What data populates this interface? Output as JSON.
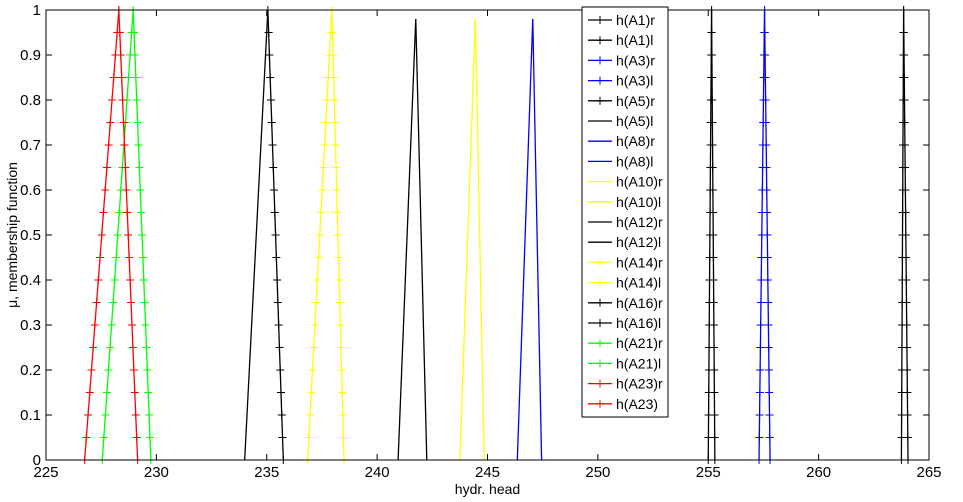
{
  "chart_data": {
    "type": "line",
    "title": "",
    "xlabel": "hydr. head",
    "ylabel": "μ, membership function",
    "xlim": [
      225,
      265
    ],
    "ylim": [
      0,
      1
    ],
    "xticks": [
      225,
      230,
      235,
      240,
      245,
      250,
      255,
      260,
      265
    ],
    "yticks": [
      0,
      0.1,
      0.2,
      0.3,
      0.4,
      0.5,
      0.6,
      0.7,
      0.8,
      0.9,
      1
    ],
    "grid": false,
    "legend_position": "top-right",
    "series": [
      {
        "name": "h(A1)r",
        "color": "#000000",
        "marker": "plus",
        "x": [
          255.15,
          255.3
        ],
        "y": [
          1,
          0
        ]
      },
      {
        "name": "h(A1)l",
        "color": "#000000",
        "marker": "plus",
        "x": [
          255.15,
          255.0
        ],
        "y": [
          1,
          0
        ]
      },
      {
        "name": "h(A3)r",
        "color": "#0000ff",
        "marker": "plus",
        "x": [
          257.55,
          257.8
        ],
        "y": [
          1,
          0
        ]
      },
      {
        "name": "h(A3)l",
        "color": "#0000ff",
        "marker": "plus",
        "x": [
          257.55,
          257.3
        ],
        "y": [
          1,
          0
        ]
      },
      {
        "name": "h(A5)r",
        "color": "#000000",
        "marker": "plus",
        "x": [
          235.05,
          235.75
        ],
        "y": [
          1,
          0
        ]
      },
      {
        "name": "h(A5)l",
        "color": "#000000",
        "marker": "none",
        "x": [
          235.05,
          234.0
        ],
        "y": [
          1,
          0
        ]
      },
      {
        "name": "h(A8)r",
        "color": "#0000ff",
        "marker": "none",
        "x": [
          247.05,
          247.45
        ],
        "y": [
          0.98,
          0
        ]
      },
      {
        "name": "h(A8)l",
        "color": "#0000ff",
        "marker": "none",
        "x": [
          247.05,
          246.35
        ],
        "y": [
          0.98,
          0
        ]
      },
      {
        "name": "h(A10)r",
        "color": "#ffff00",
        "marker": "none",
        "x": [
          244.45,
          244.85
        ],
        "y": [
          0.98,
          0
        ]
      },
      {
        "name": "h(A10)l",
        "color": "#ffff00",
        "marker": "none",
        "x": [
          244.45,
          243.75
        ],
        "y": [
          0.98,
          0
        ]
      },
      {
        "name": "h(A12)r",
        "color": "#000000",
        "marker": "none",
        "x": [
          241.75,
          242.25
        ],
        "y": [
          0.98,
          0
        ]
      },
      {
        "name": "h(A12)l",
        "color": "#000000",
        "marker": "none",
        "x": [
          241.75,
          240.95
        ],
        "y": [
          0.98,
          0
        ]
      },
      {
        "name": "h(A14)r",
        "color": "#ffff00",
        "marker": "plus",
        "x": [
          237.95,
          238.5
        ],
        "y": [
          1,
          0
        ]
      },
      {
        "name": "h(A14)l",
        "color": "#ffff00",
        "marker": "plus",
        "x": [
          237.95,
          236.85
        ],
        "y": [
          1,
          0
        ]
      },
      {
        "name": "h(A16)r",
        "color": "#000000",
        "marker": "plus",
        "x": [
          263.85,
          264.05
        ],
        "y": [
          1,
          0
        ]
      },
      {
        "name": "h(A16)l",
        "color": "#000000",
        "marker": "plus",
        "x": [
          263.85,
          263.75
        ],
        "y": [
          1,
          0
        ]
      },
      {
        "name": "h(A21)r",
        "color": "#00ff00",
        "marker": "plus",
        "x": [
          228.95,
          229.75
        ],
        "y": [
          1,
          0
        ]
      },
      {
        "name": "h(A21)l",
        "color": "#00ff00",
        "marker": "plus",
        "x": [
          228.95,
          227.55
        ],
        "y": [
          1,
          0
        ]
      },
      {
        "name": "h(A23)r",
        "color": "#ff0000",
        "marker": "plus",
        "x": [
          228.3,
          229.15
        ],
        "y": [
          1,
          0
        ]
      },
      {
        "name": "h(A23)",
        "color": "#ff0000",
        "marker": "plus",
        "x": [
          228.3,
          226.75
        ],
        "y": [
          1,
          0
        ]
      }
    ]
  }
}
